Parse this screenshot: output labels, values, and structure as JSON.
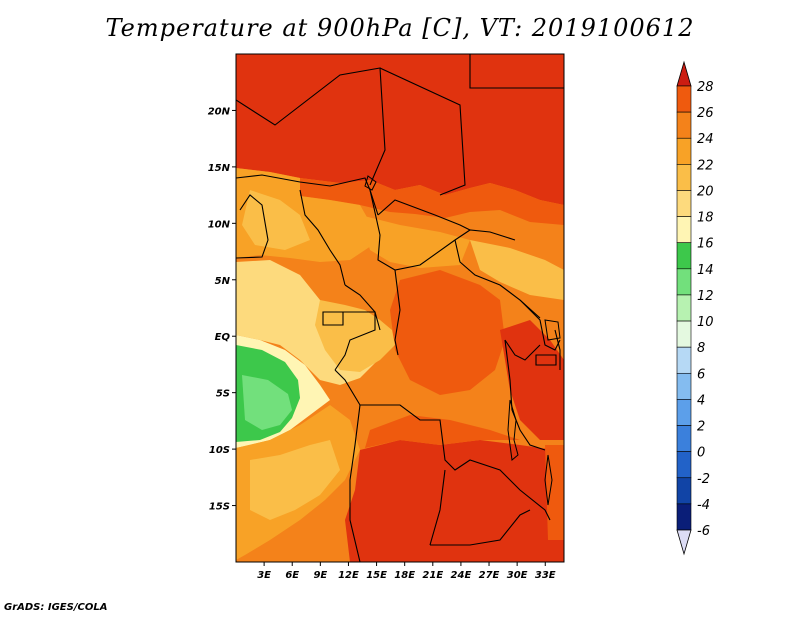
{
  "title": "Temperature at 900hPa [C], VT: 2019100612",
  "footer": "GrADS: IGES/COLA",
  "map": {
    "lon_range": [
      0,
      35
    ],
    "lat_range": [
      -20,
      25
    ],
    "lat_ticks": [
      {
        "label": "20N",
        "value": 20
      },
      {
        "label": "15N",
        "value": 15
      },
      {
        "label": "10N",
        "value": 10
      },
      {
        "label": "5N",
        "value": 5
      },
      {
        "label": "EQ",
        "value": 0
      },
      {
        "label": "5S",
        "value": -5
      },
      {
        "label": "10S",
        "value": -10
      },
      {
        "label": "15S",
        "value": -15
      }
    ],
    "lon_ticks": [
      {
        "label": "3E",
        "value": 3
      },
      {
        "label": "6E",
        "value": 6
      },
      {
        "label": "9E",
        "value": 9
      },
      {
        "label": "12E",
        "value": 12
      },
      {
        "label": "15E",
        "value": 15
      },
      {
        "label": "18E",
        "value": 18
      },
      {
        "label": "21E",
        "value": 21
      },
      {
        "label": "24E",
        "value": 24
      },
      {
        "label": "27E",
        "value": 27
      },
      {
        "label": "30E",
        "value": 30
      },
      {
        "label": "33E",
        "value": 33
      }
    ]
  },
  "colorbar": {
    "levels": [
      {
        "label": "28",
        "color": "#e0330f"
      },
      {
        "label": "26",
        "color": "#ef5a0e"
      },
      {
        "label": "24",
        "color": "#f4821a"
      },
      {
        "label": "22",
        "color": "#f8a226"
      },
      {
        "label": "20",
        "color": "#fabe48"
      },
      {
        "label": "18",
        "color": "#fdda7d"
      },
      {
        "label": "16",
        "color": "#fff5b4"
      },
      {
        "label": "14",
        "color": "#3dc84b"
      },
      {
        "label": "12",
        "color": "#72e07c"
      },
      {
        "label": "10",
        "color": "#b7f2b1"
      },
      {
        "label": "8",
        "color": "#e4f9e0"
      },
      {
        "label": "6",
        "color": "#b6d9f5"
      },
      {
        "label": "4",
        "color": "#84bcf0"
      },
      {
        "label": "2",
        "color": "#5c9fea"
      },
      {
        "label": "0",
        "color": "#3b80dc"
      },
      {
        "label": "-2",
        "color": "#2262c8"
      },
      {
        "label": "-4",
        "color": "#1144a6"
      },
      {
        "label": "-6",
        "color": "#0a1e78"
      }
    ],
    "top_color": "#cc1d12",
    "bottom_color": "#dcdcf5"
  }
}
